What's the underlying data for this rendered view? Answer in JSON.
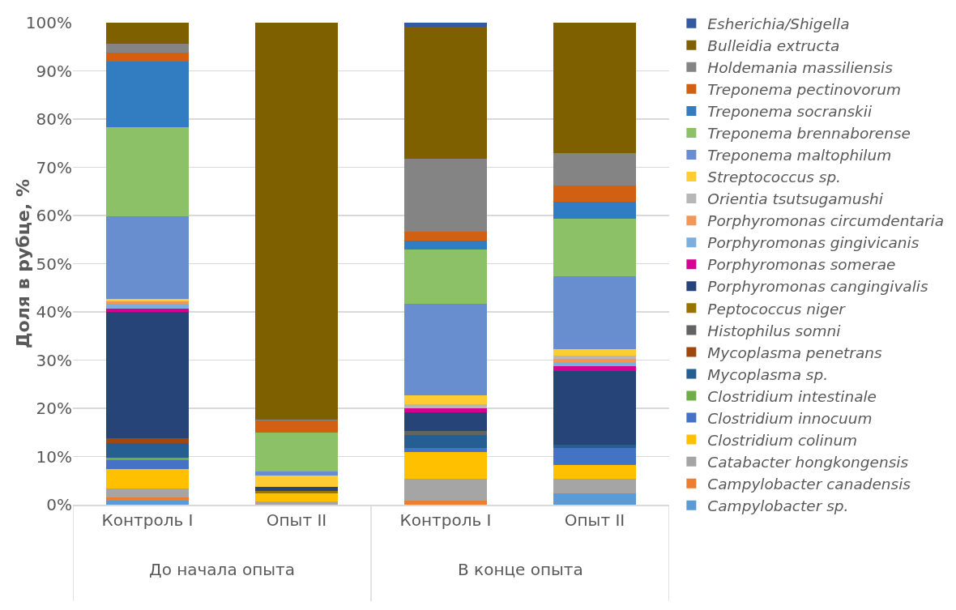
{
  "chart_data": {
    "type": "bar",
    "stacked": true,
    "ylabel": "Доля в рубце, %",
    "categories": [
      "Контроль I",
      "Опыт II",
      "Контроль I",
      "Опыт II"
    ],
    "annotations": [
      "До начала опыта",
      "В конце опыта"
    ],
    "ylim": [
      0,
      100
    ],
    "yticks": [
      {
        "value": 0,
        "label": "0%"
      },
      {
        "value": 10,
        "label": "10%"
      },
      {
        "value": 20,
        "label": "20%"
      },
      {
        "value": 30,
        "label": "30%"
      },
      {
        "value": 40,
        "label": "40%"
      },
      {
        "value": 50,
        "label": "50%"
      },
      {
        "value": 60,
        "label": "60%"
      },
      {
        "value": 70,
        "label": "70%"
      },
      {
        "value": 80,
        "label": "80%"
      },
      {
        "value": 90,
        "label": "90%"
      },
      {
        "value": 100,
        "label": "100%"
      }
    ],
    "grid": "y",
    "legend": "right",
    "series": [
      {
        "name": "Campylobacter sp.",
        "color": "#5b9bd5",
        "values": [
          0.9,
          0,
          0,
          2.3
        ]
      },
      {
        "name": "Campylobacter canadensis",
        "color": "#ed7d31",
        "values": [
          0.6,
          0,
          0.8,
          0
        ]
      },
      {
        "name": "Catabacter hongkongensis",
        "color": "#a5a5a5",
        "values": [
          1.9,
          0.6,
          4.5,
          3.0
        ]
      },
      {
        "name": "Clostridium colinum",
        "color": "#ffc000",
        "values": [
          4.0,
          1.8,
          5.6,
          2.9
        ]
      },
      {
        "name": "Clostridium innocuum",
        "color": "#4472c4",
        "values": [
          1.8,
          0,
          0.8,
          3.5
        ]
      },
      {
        "name": "Clostridium intestinale",
        "color": "#70ad47",
        "values": [
          0.6,
          0,
          0,
          0
        ]
      },
      {
        "name": "Mycoplasma sp.",
        "color": "#255e91",
        "values": [
          3.0,
          0,
          2.8,
          0.7
        ]
      },
      {
        "name": "Mycoplasma penetrans",
        "color": "#9e480e",
        "values": [
          0.9,
          0,
          0,
          0
        ]
      },
      {
        "name": "Histophilus somni",
        "color": "#636363",
        "values": [
          0,
          0,
          0.8,
          0
        ]
      },
      {
        "name": "Peptococcus niger",
        "color": "#997300",
        "values": [
          0,
          0.5,
          0,
          0
        ]
      },
      {
        "name": "Porphyromonas cangingivalis",
        "color": "#264478",
        "values": [
          26.3,
          0.8,
          3.8,
          15.4
        ]
      },
      {
        "name": "Porphyromonas somerae",
        "color": "#d60093",
        "values": [
          0.6,
          0,
          0.9,
          1.0
        ]
      },
      {
        "name": "Porphyromonas gingivicanis",
        "color": "#7cafdd",
        "values": [
          1.1,
          0,
          0,
          0.7
        ]
      },
      {
        "name": "Porphyromonas circumdentaria",
        "color": "#f1975a",
        "values": [
          0.5,
          0,
          0,
          0.7
        ]
      },
      {
        "name": "Orientia tsutsugamushi",
        "color": "#b7b7b7",
        "values": [
          0,
          0,
          0.8,
          0.7
        ]
      },
      {
        "name": "Streptococcus sp.",
        "color": "#ffcd33",
        "values": [
          0.5,
          2.4,
          1.9,
          1.3
        ]
      },
      {
        "name": "Treponema maltophilum",
        "color": "#698ed0",
        "values": [
          17.2,
          0.8,
          18.9,
          15.2
        ]
      },
      {
        "name": "Treponema brennaborense",
        "color": "#8cc168",
        "values": [
          18.4,
          8.1,
          11.3,
          11.9
        ]
      },
      {
        "name": "Treponema socranskii",
        "color": "#327dc2",
        "values": [
          13.7,
          0,
          1.9,
          3.5
        ]
      },
      {
        "name": "Treponema pectinovorum",
        "color": "#d26012",
        "values": [
          1.7,
          2.4,
          1.9,
          3.5
        ]
      },
      {
        "name": "Holdemania massiliensis",
        "color": "#848484",
        "values": [
          1.9,
          0.3,
          15.1,
          6.6
        ]
      },
      {
        "name": "Bulleidia extructa",
        "color": "#7f6000",
        "values": [
          4.4,
          82.3,
          27.3,
          27.1
        ]
      },
      {
        "name": "Esherichia/Shigella",
        "color": "#335aa1",
        "values": [
          0,
          0,
          0.9,
          0
        ]
      }
    ]
  }
}
